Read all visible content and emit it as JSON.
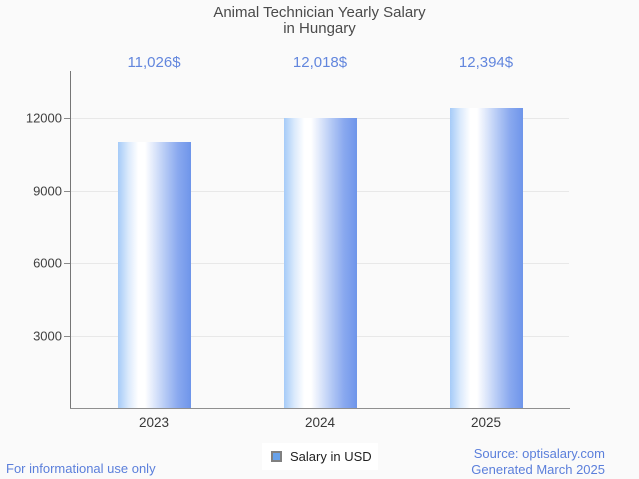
{
  "title": {
    "line1": "Animal Technician Yearly Salary",
    "line2": "in Hungary"
  },
  "chart_data": {
    "type": "bar",
    "categories": [
      "2023",
      "2024",
      "2025"
    ],
    "series": [
      {
        "name": "Salary in USD",
        "values": [
          11026,
          12018,
          12394
        ]
      }
    ],
    "value_labels": [
      "11,026$",
      "12,018$",
      "12,394$"
    ],
    "yticks": [
      3000,
      6000,
      9000,
      12000
    ],
    "ytick_labels": [
      "3000",
      "6000",
      "9000",
      "12000"
    ],
    "ylim": [
      0,
      13930
    ],
    "grid": true,
    "legend_position": "bottom",
    "bar_gradient": [
      "#a5cbf8",
      "#ffffff",
      "#6e95ea"
    ]
  },
  "legend": {
    "label": "Salary in USD",
    "swatch_color": "#68a2ea"
  },
  "footer": {
    "disclaimer": "For informational use only",
    "source": "Source: optisalary.com",
    "generated": "Generated March 2025"
  },
  "colors": {
    "accent_blue": "#5b7fdb",
    "value_label_blue": "#6286dd",
    "title_gray": "#4a4a4a",
    "background": "#fafafa"
  }
}
